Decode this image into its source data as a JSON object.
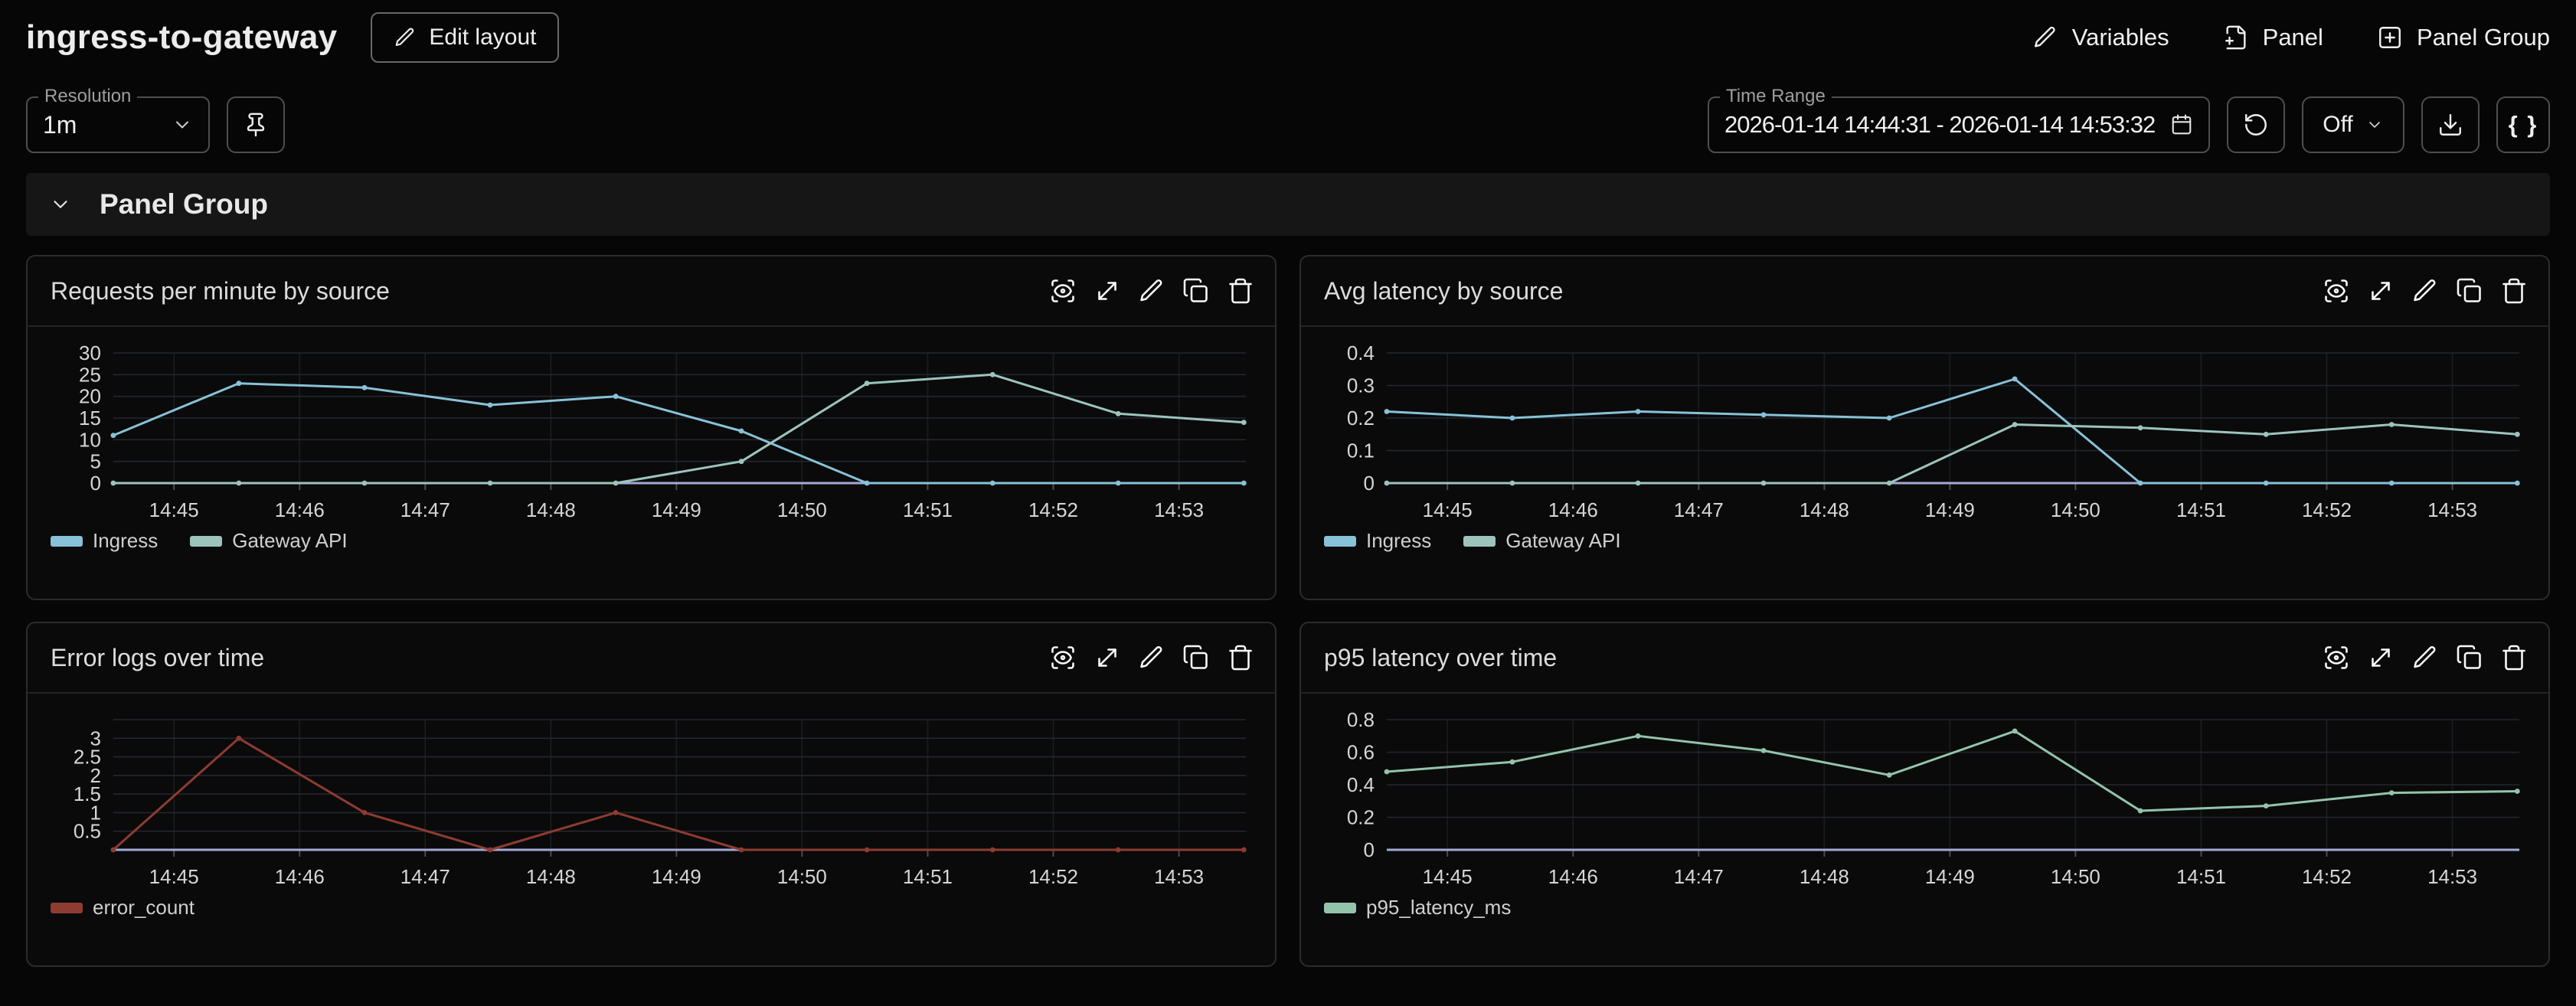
{
  "app": {
    "title": "ingress-to-gateway"
  },
  "header": {
    "edit_layout_button": "Edit layout",
    "variables_button": "Variables",
    "add_panel_button": "Panel",
    "add_panel_group_button": "Panel Group"
  },
  "toolbar": {
    "resolution_label": "Resolution",
    "resolution_value": "1m",
    "time_range_label": "Time Range",
    "time_range_value": "2026-01-14 14:44:31 - 2026-01-14 14:53:32",
    "refresh_interval_value": "Off",
    "json_button_label": "{ }"
  },
  "panel_group": {
    "title": "Panel Group"
  },
  "icons": {
    "header": [
      "pencil-icon",
      "file-plus-icon",
      "square-plus-icon"
    ],
    "toolbar": [
      "chevron-down-icon",
      "pin-icon",
      "calendar-icon",
      "refresh-ccw-icon",
      "download-icon",
      "braces-label"
    ],
    "panel_toolbar": [
      "scan-eye-icon",
      "expand-icon",
      "pencil-icon",
      "copy-icon",
      "trash-icon"
    ]
  },
  "colors": {
    "page_background": "#060606",
    "panel_background": "#0a0a0a",
    "panel_border": "#2c2c2c",
    "group_bar_background": "#161616",
    "axis_line": "#a3a9d6",
    "grid_major": "#23272f",
    "grid_minor": "#191d23",
    "tick_label": "#d6d6d6",
    "series_ingress": "#87c2d8",
    "series_gateway": "#9cc4bd",
    "series_error": "#8e3b31",
    "series_p95": "#93c4ab"
  },
  "chart_data": [
    {
      "type": "line",
      "title": "Requests per minute by source",
      "x_tick_labels": [
        "14:45",
        "14:46",
        "14:47",
        "14:48",
        "14:49",
        "14:50",
        "14:51",
        "14:52",
        "14:53"
      ],
      "point_times": [
        "14:44:31",
        "14:45:31",
        "14:46:31",
        "14:47:31",
        "14:48:31",
        "14:49:31",
        "14:50:31",
        "14:51:31",
        "14:52:31",
        "14:53:31"
      ],
      "ylim": [
        0,
        30
      ],
      "y_ticks": [
        0,
        5,
        10,
        15,
        20,
        25,
        30
      ],
      "grid": true,
      "legend_position": "bottom",
      "series": [
        {
          "name": "Ingress",
          "color": "#87c2d8",
          "values": [
            11,
            23,
            22,
            18,
            20,
            12,
            0,
            0,
            0,
            0
          ]
        },
        {
          "name": "Gateway API",
          "color": "#9cc4bd",
          "values": [
            0,
            0,
            0,
            0,
            0,
            5,
            23,
            25,
            16,
            14
          ]
        }
      ]
    },
    {
      "type": "line",
      "title": "Avg latency by source",
      "x_tick_labels": [
        "14:45",
        "14:46",
        "14:47",
        "14:48",
        "14:49",
        "14:50",
        "14:51",
        "14:52",
        "14:53"
      ],
      "point_times": [
        "14:44:31",
        "14:45:31",
        "14:46:31",
        "14:47:31",
        "14:48:31",
        "14:49:31",
        "14:50:31",
        "14:51:31",
        "14:52:31",
        "14:53:31"
      ],
      "ylim": [
        0,
        0.4
      ],
      "y_ticks": [
        0,
        0.1,
        0.2,
        0.3,
        0.4
      ],
      "grid": true,
      "legend_position": "bottom",
      "series": [
        {
          "name": "Ingress",
          "color": "#87c2d8",
          "values": [
            0.22,
            0.2,
            0.22,
            0.21,
            0.2,
            0.32,
            0,
            0,
            0,
            0
          ]
        },
        {
          "name": "Gateway API",
          "color": "#9cc4bd",
          "values": [
            0,
            0,
            0,
            0,
            0,
            0.18,
            0.17,
            0.15,
            0.18,
            0.15
          ]
        }
      ]
    },
    {
      "type": "line",
      "title": "Error logs over time",
      "x_tick_labels": [
        "14:45",
        "14:46",
        "14:47",
        "14:48",
        "14:49",
        "14:50",
        "14:51",
        "14:52",
        "14:53"
      ],
      "point_times": [
        "14:44:31",
        "14:45:31",
        "14:46:31",
        "14:47:31",
        "14:48:31",
        "14:49:31",
        "14:50:31",
        "14:51:31",
        "14:52:31",
        "14:53:31"
      ],
      "ylim": [
        0,
        3.5
      ],
      "y_ticks": [
        0.5,
        1,
        1.5,
        2,
        2.5,
        3
      ],
      "grid": true,
      "legend_position": "bottom",
      "series": [
        {
          "name": "error_count",
          "color": "#8e3b31",
          "values": [
            0,
            3,
            1,
            0,
            1,
            0,
            0,
            0,
            0,
            0
          ]
        }
      ]
    },
    {
      "type": "line",
      "title": "p95 latency over time",
      "x_tick_labels": [
        "14:45",
        "14:46",
        "14:47",
        "14:48",
        "14:49",
        "14:50",
        "14:51",
        "14:52",
        "14:53"
      ],
      "point_times": [
        "14:44:31",
        "14:45:31",
        "14:46:31",
        "14:47:31",
        "14:48:31",
        "14:49:31",
        "14:50:31",
        "14:51:31",
        "14:52:31",
        "14:53:31"
      ],
      "ylim": [
        0,
        0.8
      ],
      "y_ticks": [
        0,
        0.2,
        0.4,
        0.6,
        0.8
      ],
      "grid": true,
      "legend_position": "bottom",
      "series": [
        {
          "name": "p95_latency_ms",
          "color": "#93c4ab",
          "values": [
            0.48,
            0.54,
            0.7,
            0.61,
            0.46,
            0.73,
            0.24,
            0.27,
            0.35,
            0.36
          ]
        }
      ]
    }
  ]
}
